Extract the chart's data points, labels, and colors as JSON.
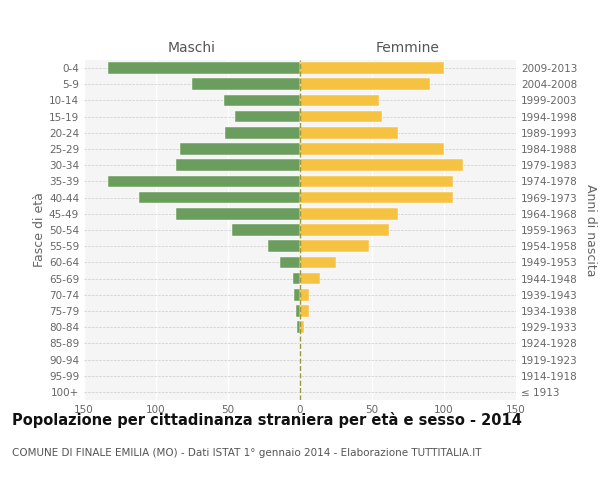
{
  "age_groups": [
    "100+",
    "95-99",
    "90-94",
    "85-89",
    "80-84",
    "75-79",
    "70-74",
    "65-69",
    "60-64",
    "55-59",
    "50-54",
    "45-49",
    "40-44",
    "35-39",
    "30-34",
    "25-29",
    "20-24",
    "15-19",
    "10-14",
    "5-9",
    "0-4"
  ],
  "birth_years": [
    "≤ 1913",
    "1914-1918",
    "1919-1923",
    "1924-1928",
    "1929-1933",
    "1934-1938",
    "1939-1943",
    "1944-1948",
    "1949-1953",
    "1954-1958",
    "1959-1963",
    "1964-1968",
    "1969-1973",
    "1974-1978",
    "1979-1983",
    "1984-1988",
    "1989-1993",
    "1994-1998",
    "1999-2003",
    "2004-2008",
    "2009-2013"
  ],
  "maschi": [
    0,
    0,
    0,
    0,
    2,
    3,
    4,
    5,
    14,
    22,
    47,
    86,
    112,
    133,
    86,
    83,
    52,
    45,
    53,
    75,
    133
  ],
  "femmine": [
    0,
    0,
    0,
    0,
    3,
    6,
    6,
    14,
    25,
    48,
    62,
    68,
    106,
    106,
    113,
    100,
    68,
    57,
    55,
    90,
    100
  ],
  "maschi_color": "#6b9e5e",
  "femmine_color": "#f5c242",
  "background_color": "#f5f5f5",
  "title": "Popolazione per cittadinanza straniera per età e sesso - 2014",
  "subtitle": "COMUNE DI FINALE EMILIA (MO) - Dati ISTAT 1° gennaio 2014 - Elaborazione TUTTITALIA.IT",
  "ylabel_left": "Fasce di età",
  "ylabel_right": "Anni di nascita",
  "xlabel_maschi": "Maschi",
  "xlabel_femmine": "Femmine",
  "xlim": 150,
  "title_fontsize": 10.5,
  "subtitle_fontsize": 7.5,
  "tick_fontsize": 7.5,
  "label_fontsize": 9
}
